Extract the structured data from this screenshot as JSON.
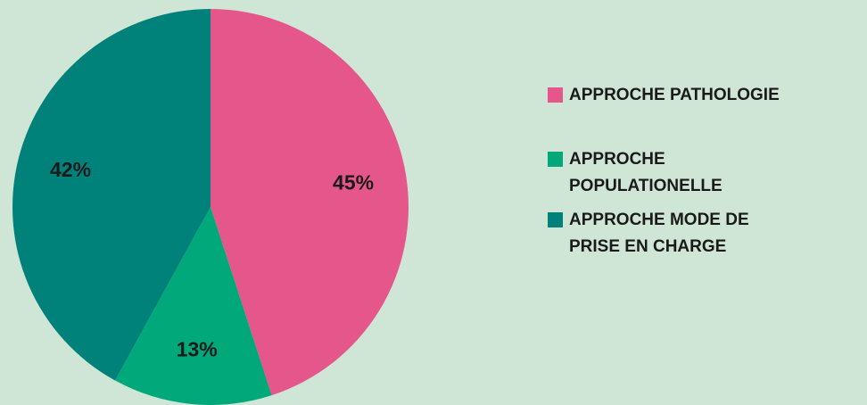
{
  "chart_data": {
    "type": "pie",
    "categories": [
      "APPROCHE PATHOLOGIE",
      "APPROCHE POPULATIONELLE",
      "APPROCHE MODE DE PRISE EN CHARGE"
    ],
    "values": [
      45,
      13,
      42
    ],
    "value_labels": [
      "45%",
      "13%",
      "42%"
    ],
    "colors": [
      "#e5578a",
      "#00a87a",
      "#00827a"
    ]
  }
}
